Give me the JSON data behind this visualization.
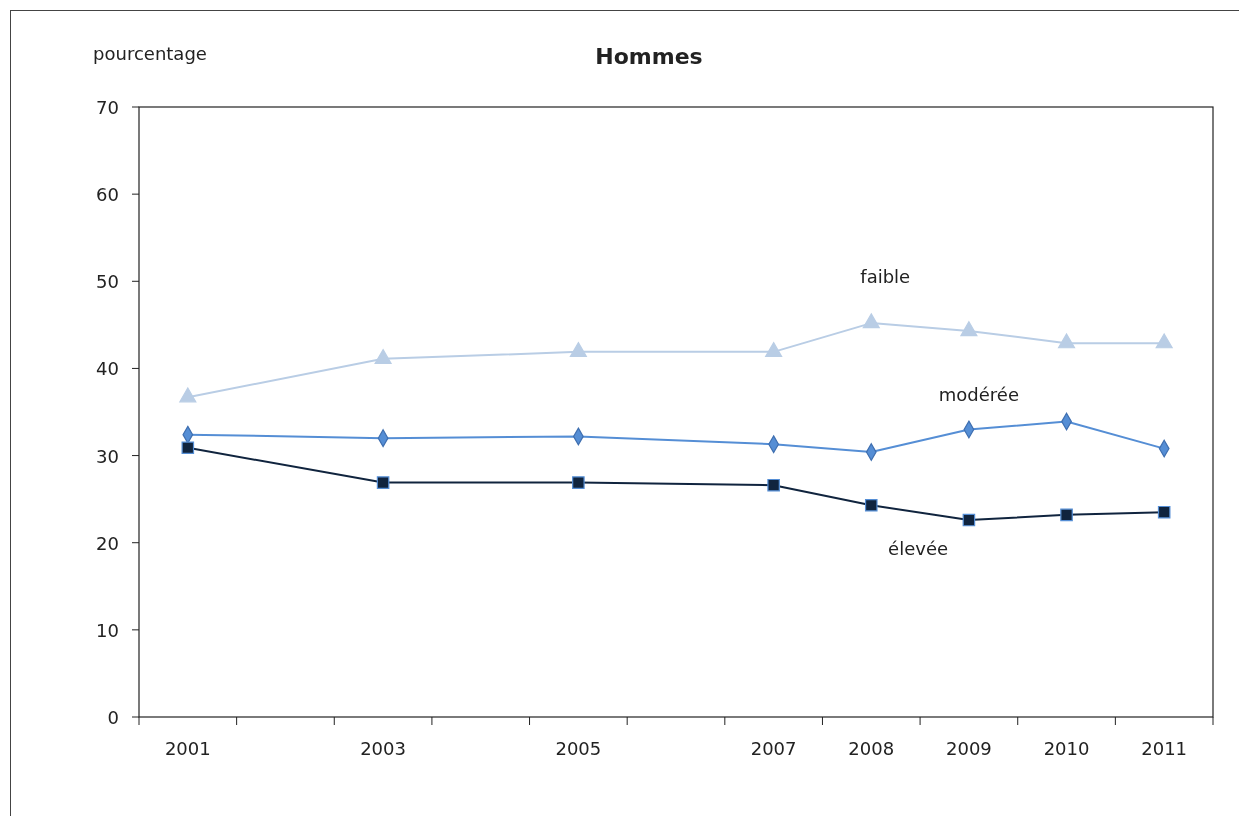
{
  "chart_data": {
    "type": "line",
    "title": "Hommes",
    "ylabel": "pourcentage",
    "categories": [
      "2001",
      null,
      "2003",
      null,
      "2005",
      null,
      "2007",
      "2008",
      "2009",
      "2010",
      "2011"
    ],
    "series": [
      {
        "name": "faible",
        "color": "#b9cde5",
        "marker": "triangle",
        "values": [
          36.7,
          null,
          41.1,
          null,
          41.9,
          null,
          41.9,
          45.2,
          44.3,
          42.9,
          42.9
        ]
      },
      {
        "name": "modérée",
        "color": "#558ed5",
        "marker": "diamond",
        "values": [
          32.4,
          null,
          32.0,
          null,
          32.2,
          null,
          31.3,
          30.4,
          33.0,
          33.9,
          30.8
        ]
      },
      {
        "name": "élevée",
        "color": "#10243e",
        "marker": "square",
        "values": [
          30.9,
          null,
          26.9,
          null,
          26.9,
          null,
          26.6,
          24.3,
          22.6,
          23.2,
          23.5
        ]
      }
    ],
    "ylim": [
      0,
      70
    ],
    "yticks": [
      0,
      10,
      20,
      30,
      40,
      50,
      60,
      70
    ],
    "grid": false,
    "legend": false
  }
}
